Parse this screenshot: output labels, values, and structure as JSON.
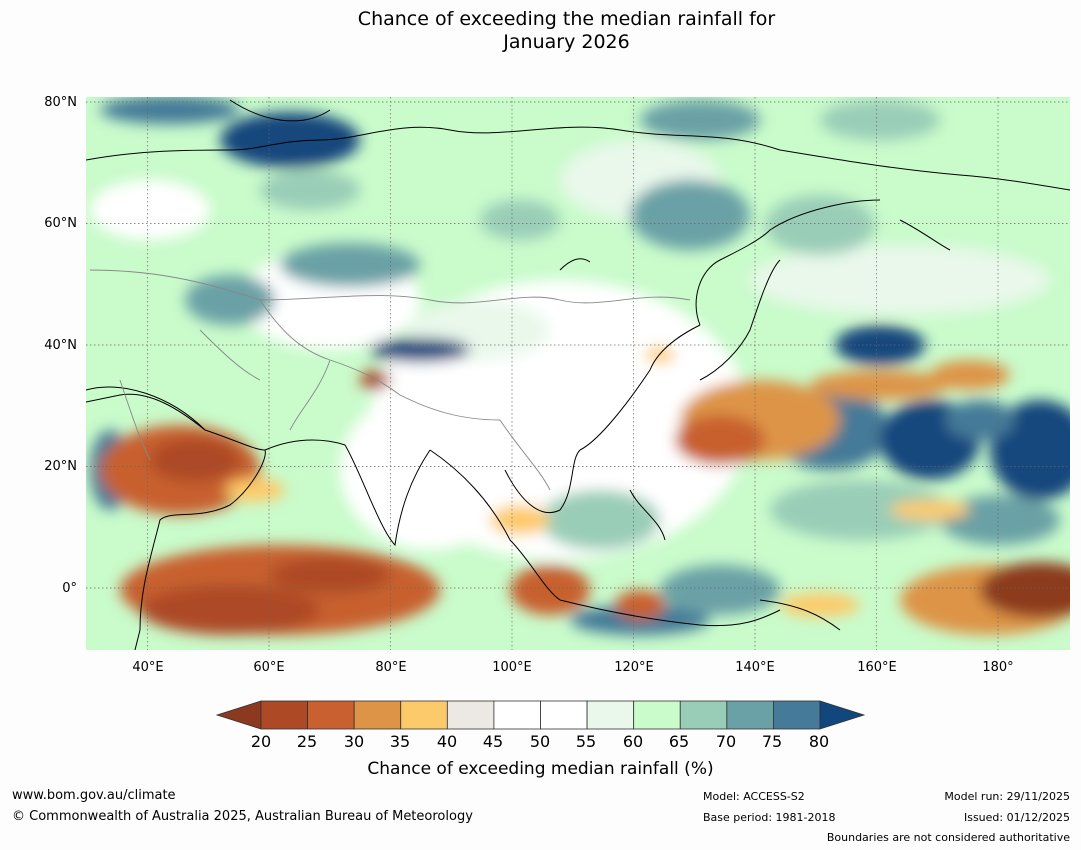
{
  "title": {
    "line1": "Chance of exceeding the median rainfall for",
    "line2": "January 2026"
  },
  "map": {
    "lat_labels": [
      "80°N",
      "60°N",
      "40°N",
      "20°N",
      "0°"
    ],
    "lon_labels": [
      "40°E",
      "60°E",
      "80°E",
      "100°E",
      "120°E",
      "140°E",
      "160°E",
      "180°"
    ]
  },
  "colorbar": {
    "ticks": [
      "20",
      "25",
      "30",
      "35",
      "40",
      "45",
      "50",
      "55",
      "60",
      "65",
      "70",
      "75",
      "80"
    ],
    "colors": [
      "#8c3a1f",
      "#ad4a25",
      "#c8602f",
      "#dd9446",
      "#fdca6b",
      "#ece8e3",
      "#ffffff",
      "#ffffff",
      "#e9f8eb",
      "#c9fbcb",
      "#9acdb7",
      "#6aa1a6",
      "#457a98",
      "#12477d"
    ],
    "label": "Chance of exceeding median rainfall (%)"
  },
  "footer": {
    "url": "www.bom.gov.au/climate",
    "copyright": "© Commonwealth of Australia 2025, Australian Bureau of Meteorology",
    "model": "Model: ACCESS-S2",
    "base_period": "Base period: 1981-2018",
    "model_run": "Model run: 29/11/2025",
    "issued": "Issued: 01/12/2025",
    "disclaimer": "Boundaries are not considered authoritative"
  }
}
